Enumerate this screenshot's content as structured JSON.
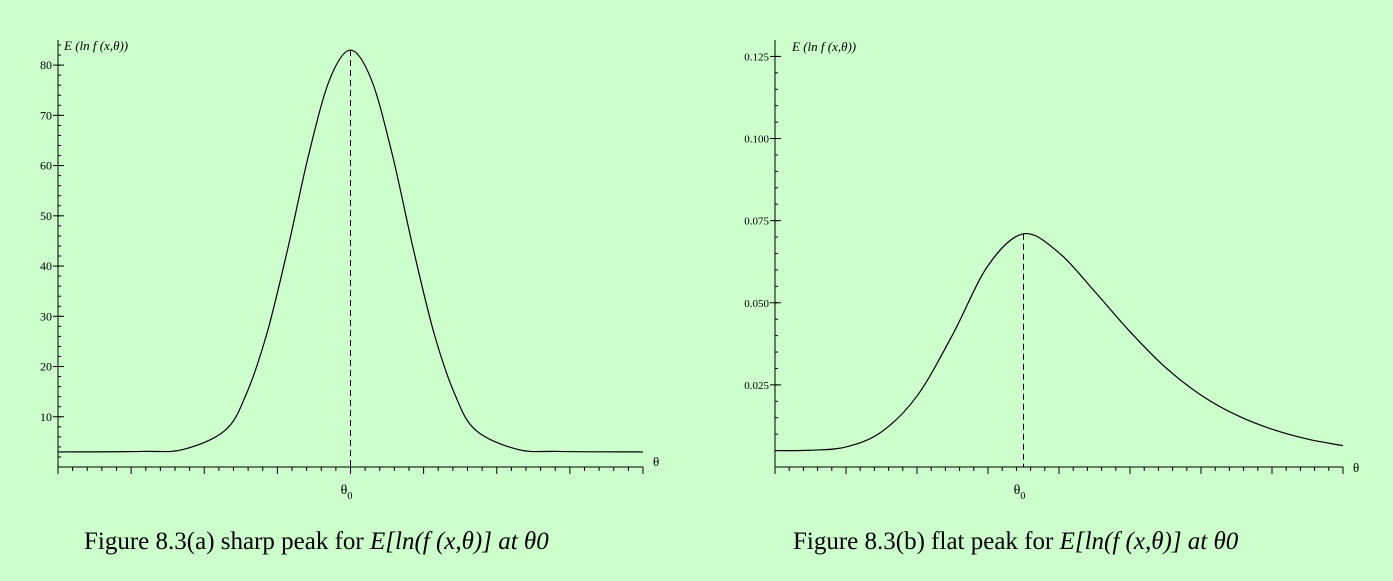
{
  "chart_data": [
    {
      "type": "line",
      "ylabel": "E (ln f (x,θ))",
      "xlabel": "θ",
      "x_marker_label": "θ0",
      "ylim": [
        0,
        85
      ],
      "yticks": [
        10,
        20,
        30,
        40,
        50,
        60,
        70,
        80
      ],
      "x_range": [
        -7,
        7
      ],
      "peak_x": 0,
      "peak_y": 83,
      "baseline_y": 3,
      "series": [
        {
          "x": [
            -7,
            -5,
            -4,
            -3,
            -2.5,
            -2,
            -1.5,
            -1,
            -0.5,
            0,
            0.5,
            1,
            1.5,
            2,
            2.5,
            3,
            4,
            5,
            7
          ],
          "y": [
            3,
            3.1,
            3.5,
            7.3,
            14.4,
            26.6,
            43.5,
            62.2,
            77.1,
            83,
            77.1,
            62.2,
            43.5,
            26.6,
            14.4,
            7.3,
            3.5,
            3.1,
            3
          ]
        }
      ],
      "dashed_line_at_peak": true,
      "caption_text": "Figure 8.3(a) sharp peak for ",
      "caption_math": "E[ln(f (x,θ)]   at   θ0"
    },
    {
      "type": "line",
      "ylabel": "E (ln f (x,θ))",
      "xlabel": "θ",
      "x_marker_label": "θ0",
      "ylim": [
        0,
        0.13
      ],
      "yticks": [
        0.025,
        0.05,
        0.075,
        0.1,
        0.125
      ],
      "ytick_labels": [
        "0.025",
        "0.050",
        "0.075",
        "0.100",
        "0.125"
      ],
      "x_range": [
        -7,
        9
      ],
      "peak_x": 0,
      "peak_y": 0.071,
      "baseline_y": 0.005,
      "series": [
        {
          "x": [
            -7,
            -6,
            -5,
            -4,
            -3,
            -2,
            -1,
            0,
            1,
            2,
            3,
            4,
            5,
            6,
            7,
            8,
            9
          ],
          "y": [
            0.005,
            0.0051,
            0.0061,
            0.0107,
            0.0216,
            0.0402,
            0.0613,
            0.071,
            0.0652,
            0.0535,
            0.0412,
            0.0303,
            0.0219,
            0.0158,
            0.0115,
            0.0085,
            0.0065
          ]
        }
      ],
      "dashed_line_at_peak": true,
      "caption_text": "Figure 8.3(b) flat peak for ",
      "caption_math": "E[ln(f (x,θ)]   at   θ0"
    }
  ]
}
